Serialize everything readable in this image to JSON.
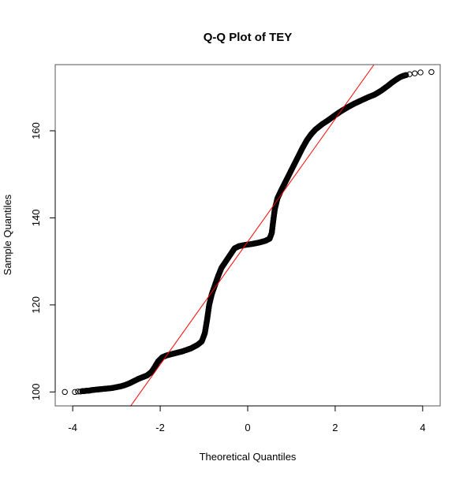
{
  "chart_data": {
    "type": "scatter",
    "title": "Q-Q Plot of TEY",
    "xlabel": "Theoretical Quantiles",
    "ylabel": "Sample Quantiles",
    "xlim": [
      -4.4,
      4.4
    ],
    "ylim": [
      96.8,
      175.2
    ],
    "x_ticks": [
      -4,
      -2,
      0,
      2,
      4
    ],
    "y_ticks": [
      100,
      120,
      140,
      160
    ],
    "grid": false,
    "legend": "none",
    "point_color": "#000000",
    "line_color": "#ff0000",
    "reference_line": {
      "intercept": 134.5,
      "slope": 14.1
    },
    "points": [
      [
        -4.18,
        100.0
      ],
      [
        -3.95,
        100.0
      ],
      [
        -3.88,
        100.1
      ],
      [
        -3.82,
        100.1
      ],
      [
        -3.78,
        100.2
      ],
      [
        -3.73,
        100.2
      ],
      [
        -3.68,
        100.3
      ],
      [
        -3.63,
        100.3
      ],
      [
        -3.58,
        100.4
      ],
      [
        -3.5,
        100.5
      ],
      [
        -3.4,
        100.6
      ],
      [
        -3.3,
        100.7
      ],
      [
        -3.2,
        100.8
      ],
      [
        -3.1,
        100.9
      ],
      [
        -3.0,
        101.1
      ],
      [
        -2.9,
        101.3
      ],
      [
        -2.8,
        101.6
      ],
      [
        -2.7,
        102.0
      ],
      [
        -2.6,
        102.5
      ],
      [
        -2.5,
        103.0
      ],
      [
        -2.4,
        103.4
      ],
      [
        -2.3,
        103.8
      ],
      [
        -2.2,
        104.6
      ],
      [
        -2.12,
        105.8
      ],
      [
        -2.05,
        107.0
      ],
      [
        -1.95,
        108.0
      ],
      [
        -1.85,
        108.4
      ],
      [
        -1.7,
        108.8
      ],
      [
        -1.5,
        109.3
      ],
      [
        -1.3,
        110.0
      ],
      [
        -1.15,
        110.8
      ],
      [
        -1.05,
        111.6
      ],
      [
        -0.98,
        113.5
      ],
      [
        -0.93,
        116.5
      ],
      [
        -0.88,
        120.0
      ],
      [
        -0.82,
        122.5
      ],
      [
        -0.75,
        124.5
      ],
      [
        -0.68,
        126.5
      ],
      [
        -0.6,
        128.5
      ],
      [
        -0.5,
        130.0
      ],
      [
        -0.4,
        131.5
      ],
      [
        -0.3,
        133.0
      ],
      [
        -0.2,
        133.5
      ],
      [
        -0.05,
        133.8
      ],
      [
        0.1,
        134.0
      ],
      [
        0.25,
        134.3
      ],
      [
        0.4,
        134.7
      ],
      [
        0.5,
        135.2
      ],
      [
        0.55,
        136.5
      ],
      [
        0.58,
        139.0
      ],
      [
        0.62,
        142.0
      ],
      [
        0.68,
        144.5
      ],
      [
        0.75,
        146.0
      ],
      [
        0.85,
        148.0
      ],
      [
        0.95,
        150.0
      ],
      [
        1.05,
        152.0
      ],
      [
        1.15,
        154.0
      ],
      [
        1.25,
        156.0
      ],
      [
        1.35,
        157.8
      ],
      [
        1.45,
        159.2
      ],
      [
        1.55,
        160.3
      ],
      [
        1.7,
        161.5
      ],
      [
        1.85,
        162.5
      ],
      [
        2.0,
        163.6
      ],
      [
        2.15,
        164.6
      ],
      [
        2.3,
        165.5
      ],
      [
        2.45,
        166.3
      ],
      [
        2.6,
        167.0
      ],
      [
        2.75,
        167.7
      ],
      [
        2.9,
        168.3
      ],
      [
        3.05,
        169.2
      ],
      [
        3.2,
        170.3
      ],
      [
        3.3,
        171.1
      ],
      [
        3.4,
        171.8
      ],
      [
        3.48,
        172.3
      ],
      [
        3.55,
        172.6
      ],
      [
        3.62,
        172.8
      ],
      [
        3.7,
        173.0
      ],
      [
        3.82,
        173.2
      ],
      [
        3.95,
        173.4
      ],
      [
        4.2,
        173.5
      ]
    ]
  }
}
